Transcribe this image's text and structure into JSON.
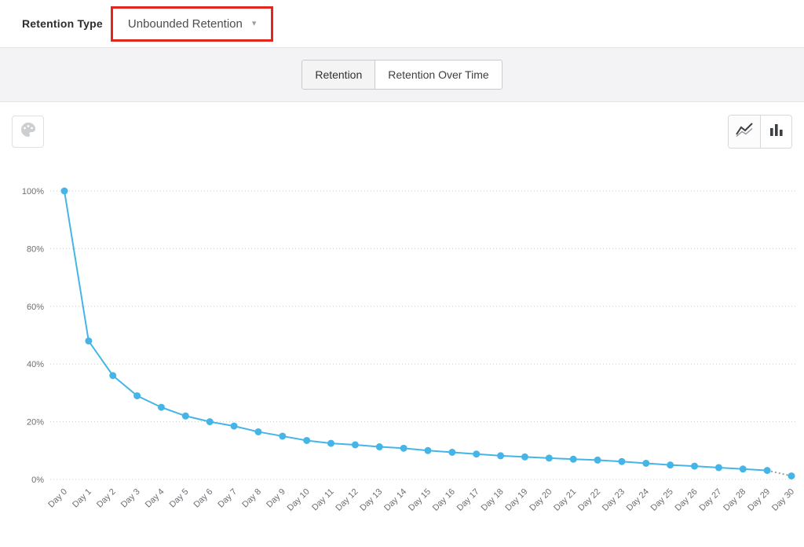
{
  "header": {
    "retention_type_label": "Retention Type",
    "retention_dropdown": {
      "value": "Unbounded Retention",
      "chevron_icon": "chevron-down-icon"
    }
  },
  "annotation": {
    "highlight_color": "#e2261d"
  },
  "tabs": {
    "items": [
      {
        "label": "Retention",
        "active": true
      },
      {
        "label": "Retention Over Time",
        "active": false
      }
    ]
  },
  "toolbar": {
    "left_button_icon": "palette-icon",
    "view_toggle": {
      "options": [
        "line-chart-icon",
        "bar-chart-icon"
      ],
      "active": "line-chart-icon"
    }
  },
  "chart_data": {
    "type": "line",
    "title": "",
    "xlabel": "",
    "ylabel": "",
    "categories": [
      "Day 0",
      "Day 1",
      "Day 2",
      "Day 3",
      "Day 4",
      "Day 5",
      "Day 6",
      "Day 7",
      "Day 8",
      "Day 9",
      "Day 10",
      "Day 11",
      "Day 12",
      "Day 13",
      "Day 14",
      "Day 15",
      "Day 16",
      "Day 17",
      "Day 18",
      "Day 19",
      "Day 20",
      "Day 21",
      "Day 22",
      "Day 23",
      "Day 24",
      "Day 25",
      "Day 26",
      "Day 27",
      "Day 28",
      "Day 29",
      "Day 30"
    ],
    "values": [
      100,
      48,
      36,
      29,
      25,
      22,
      20,
      18.5,
      16.5,
      15,
      13.5,
      12.5,
      12,
      11.3,
      10.8,
      10,
      9.4,
      8.8,
      8.2,
      7.8,
      7.4,
      7,
      6.7,
      6.2,
      5.6,
      5,
      4.6,
      4.1,
      3.6,
      3.1,
      1.2
    ],
    "ylim": [
      0,
      100
    ],
    "y_ticks": [
      0,
      20,
      40,
      60,
      80,
      100
    ],
    "y_tick_suffix": "%",
    "grid": true,
    "legend": false,
    "line_color": "#45b5e8",
    "point_color": "#45b5e8",
    "last_segment_style": "dotted",
    "last_segment_color": "#9aa0a6"
  }
}
